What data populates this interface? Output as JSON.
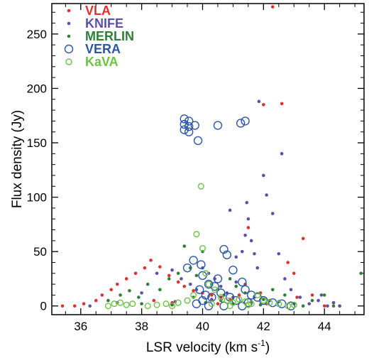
{
  "chart_data": {
    "type": "scatter",
    "xlabel": "LSR velocity (km s",
    "xlabel_sup": "-1",
    "xlabel_close": ")",
    "ylabel": "Flux density (Jy)",
    "xlim": [
      35.05,
      45.3
    ],
    "ylim": [
      -8,
      278
    ],
    "xticks": [
      36,
      38,
      40,
      42,
      44
    ],
    "yticks": [
      0,
      50,
      100,
      150,
      200,
      250
    ],
    "grid": false,
    "legend_position": "top-left",
    "series": [
      {
        "name": "VLA",
        "marker": "dot",
        "color": "#e0312f",
        "points": [
          [
            35.4,
            0
          ],
          [
            35.8,
            0
          ],
          [
            36.1,
            2
          ],
          [
            36.5,
            5
          ],
          [
            36.7,
            10
          ],
          [
            37.0,
            15
          ],
          [
            37.2,
            20
          ],
          [
            37.5,
            25
          ],
          [
            37.8,
            30
          ],
          [
            38.1,
            35
          ],
          [
            38.3,
            42
          ],
          [
            38.6,
            36
          ],
          [
            38.9,
            28
          ],
          [
            39.2,
            22
          ],
          [
            39.4,
            18
          ],
          [
            39.7,
            14
          ],
          [
            40.0,
            12
          ],
          [
            40.3,
            10
          ],
          [
            40.6,
            8
          ],
          [
            40.9,
            6
          ],
          [
            41.2,
            10
          ],
          [
            41.4,
            20
          ],
          [
            41.5,
            72
          ],
          [
            41.9,
            12
          ],
          [
            42.0,
            185
          ],
          [
            42.3,
            275
          ],
          [
            42.6,
            186
          ],
          [
            42.8,
            40
          ],
          [
            43.0,
            30
          ],
          [
            43.3,
            62
          ],
          [
            43.6,
            10
          ],
          [
            44.0,
            0
          ],
          [
            44.3,
            3
          ],
          [
            44.5,
            0
          ],
          [
            38.4,
            5
          ],
          [
            39.0,
            3
          ],
          [
            40.5,
            2
          ],
          [
            41.6,
            4
          ],
          [
            42.1,
            2
          ],
          [
            43.1,
            8
          ]
        ]
      },
      {
        "name": "KNIFE",
        "marker": "dot",
        "color": "#5e4fa8",
        "points": [
          [
            36.3,
            0
          ],
          [
            37.2,
            3
          ],
          [
            38.0,
            12
          ],
          [
            38.5,
            30
          ],
          [
            39.0,
            33
          ],
          [
            39.3,
            25
          ],
          [
            39.6,
            20
          ],
          [
            39.8,
            15
          ],
          [
            40.0,
            35
          ],
          [
            40.2,
            30
          ],
          [
            40.4,
            25
          ],
          [
            40.6,
            18
          ],
          [
            40.8,
            12
          ],
          [
            41.0,
            8
          ],
          [
            41.1,
            22
          ],
          [
            41.3,
            50
          ],
          [
            41.4,
            65
          ],
          [
            41.45,
            95
          ],
          [
            41.5,
            80
          ],
          [
            41.6,
            60
          ],
          [
            41.7,
            48
          ],
          [
            41.8,
            35
          ],
          [
            41.85,
            188
          ],
          [
            42.0,
            120
          ],
          [
            42.1,
            102
          ],
          [
            42.3,
            85
          ],
          [
            42.5,
            48
          ],
          [
            42.6,
            140
          ],
          [
            42.7,
            25
          ],
          [
            42.9,
            15
          ],
          [
            43.2,
            8
          ],
          [
            43.5,
            2
          ],
          [
            43.8,
            5
          ],
          [
            44.1,
            0
          ],
          [
            44.5,
            0
          ],
          [
            40.9,
            88
          ],
          [
            41.1,
            45
          ],
          [
            40.3,
            6
          ],
          [
            39.1,
            4
          ],
          [
            42.2,
            5
          ],
          [
            43.9,
            10
          ],
          [
            44.3,
            3
          ]
        ]
      },
      {
        "name": "MERLIN",
        "marker": "dot",
        "color": "#2e7f3a",
        "points": [
          [
            36.9,
            5
          ],
          [
            37.3,
            10
          ],
          [
            37.6,
            14
          ],
          [
            37.9,
            8
          ],
          [
            38.2,
            20
          ],
          [
            38.6,
            15
          ],
          [
            38.9,
            25
          ],
          [
            39.2,
            30
          ],
          [
            39.4,
            55
          ],
          [
            39.6,
            35
          ],
          [
            39.8,
            28
          ],
          [
            40.0,
            50
          ],
          [
            40.3,
            20
          ],
          [
            40.5,
            15
          ],
          [
            40.7,
            10
          ],
          [
            40.9,
            25
          ],
          [
            41.1,
            18
          ],
          [
            41.4,
            12
          ],
          [
            41.7,
            8
          ],
          [
            42.0,
            6
          ],
          [
            42.3,
            15
          ],
          [
            42.5,
            4
          ],
          [
            42.7,
            10
          ],
          [
            43.0,
            2
          ],
          [
            43.3,
            0
          ],
          [
            43.6,
            5
          ],
          [
            44.0,
            10
          ],
          [
            44.3,
            0
          ],
          [
            45.2,
            30
          ],
          [
            38.0,
            2
          ],
          [
            39.0,
            1
          ],
          [
            40.1,
            3
          ],
          [
            41.0,
            2
          ],
          [
            41.9,
            1
          ],
          [
            39.7,
            8
          ],
          [
            40.6,
            5
          ]
        ]
      },
      {
        "name": "VERA",
        "marker": "ring",
        "color": "#2c57a8",
        "points": [
          [
            39.4,
            172
          ],
          [
            39.4,
            167
          ],
          [
            39.4,
            162
          ],
          [
            39.55,
            170
          ],
          [
            39.55,
            165
          ],
          [
            39.55,
            160
          ],
          [
            39.75,
            166
          ],
          [
            39.85,
            152
          ],
          [
            40.5,
            166
          ],
          [
            41.25,
            168
          ],
          [
            41.4,
            170
          ],
          [
            39.5,
            35
          ],
          [
            39.7,
            42
          ],
          [
            39.95,
            38
          ],
          [
            40.0,
            28
          ],
          [
            40.2,
            20
          ],
          [
            40.4,
            18
          ],
          [
            40.6,
            12
          ],
          [
            40.7,
            52
          ],
          [
            40.8,
            47
          ],
          [
            41.0,
            33
          ],
          [
            41.3,
            22
          ],
          [
            41.4,
            15
          ],
          [
            41.6,
            10
          ],
          [
            41.8,
            8
          ],
          [
            42.0,
            5
          ],
          [
            42.3,
            3
          ],
          [
            42.6,
            2
          ],
          [
            42.9,
            0
          ],
          [
            39.9,
            15
          ],
          [
            40.1,
            10
          ],
          [
            40.3,
            8
          ],
          [
            40.5,
            25
          ],
          [
            40.9,
            8
          ],
          [
            41.1,
            5
          ],
          [
            41.5,
            3
          ],
          [
            40.0,
            5
          ],
          [
            39.8,
            2
          ],
          [
            40.2,
            0
          ],
          [
            40.7,
            0
          ],
          [
            41.3,
            0
          ]
        ]
      },
      {
        "name": "KaVA",
        "marker": "ring",
        "color": "#6fc144",
        "points": [
          [
            36.9,
            0
          ],
          [
            37.1,
            2
          ],
          [
            37.3,
            3
          ],
          [
            37.5,
            1
          ],
          [
            37.7,
            2
          ],
          [
            38.2,
            0
          ],
          [
            38.5,
            1
          ],
          [
            38.8,
            2
          ],
          [
            39.0,
            0
          ],
          [
            39.2,
            3
          ],
          [
            39.5,
            5
          ],
          [
            39.8,
            66
          ],
          [
            39.95,
            110
          ],
          [
            40.0,
            53
          ],
          [
            40.1,
            30
          ],
          [
            40.2,
            20
          ],
          [
            40.4,
            15
          ],
          [
            40.6,
            8
          ],
          [
            40.8,
            5
          ],
          [
            41.0,
            3
          ],
          [
            41.2,
            6
          ],
          [
            41.4,
            4
          ],
          [
            41.6,
            2
          ],
          [
            41.8,
            10
          ],
          [
            42.0,
            5
          ],
          [
            42.2,
            3
          ],
          [
            42.5,
            2
          ],
          [
            42.8,
            0
          ],
          [
            43.0,
            1
          ],
          [
            39.7,
            10
          ],
          [
            40.3,
            2
          ],
          [
            40.9,
            0
          ],
          [
            41.5,
            1
          ]
        ]
      }
    ]
  }
}
